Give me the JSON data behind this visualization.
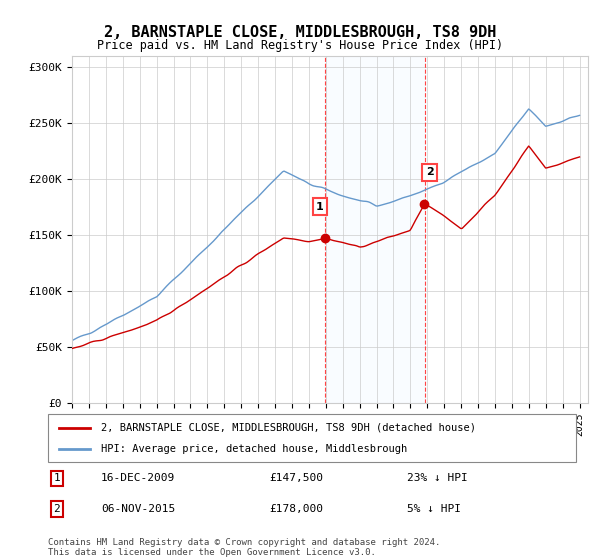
{
  "title": "2, BARNSTAPLE CLOSE, MIDDLESBROUGH, TS8 9DH",
  "subtitle": "Price paid vs. HM Land Registry's House Price Index (HPI)",
  "legend_label_red": "2, BARNSTAPLE CLOSE, MIDDLESBROUGH, TS8 9DH (detached house)",
  "legend_label_blue": "HPI: Average price, detached house, Middlesbrough",
  "transaction1_label": "1",
  "transaction1_date": "16-DEC-2009",
  "transaction1_price": "£147,500",
  "transaction1_hpi": "23% ↓ HPI",
  "transaction2_label": "2",
  "transaction2_date": "06-NOV-2015",
  "transaction2_price": "£178,000",
  "transaction2_hpi": "5% ↓ HPI",
  "footer": "Contains HM Land Registry data © Crown copyright and database right 2024.\nThis data is licensed under the Open Government Licence v3.0.",
  "ylim": [
    0,
    310000
  ],
  "yticks": [
    0,
    50000,
    100000,
    150000,
    200000,
    250000,
    300000
  ],
  "ytick_labels": [
    "£0",
    "£50K",
    "£100K",
    "£150K",
    "£200K",
    "£250K",
    "£300K"
  ],
  "year_start": 1995,
  "year_end": 2025,
  "transaction1_year": 2009.96,
  "transaction2_year": 2015.84,
  "transaction1_price_val": 147500,
  "transaction2_price_val": 178000,
  "color_red": "#cc0000",
  "color_blue": "#6699cc",
  "color_shading": "#ddeeff",
  "background_color": "#ffffff",
  "grid_color": "#cccccc"
}
